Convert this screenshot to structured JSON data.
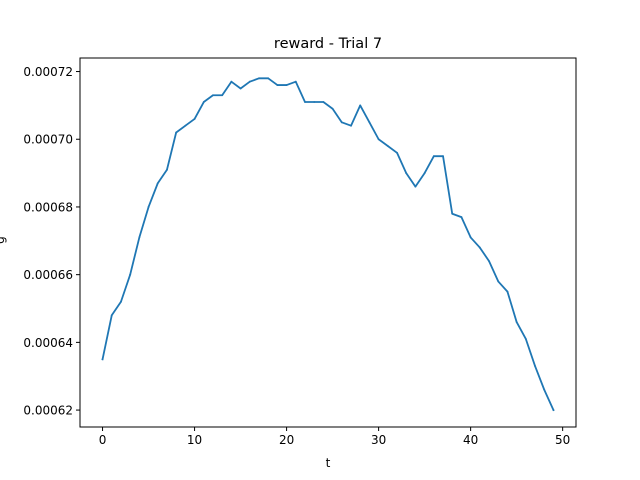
{
  "chart_data": {
    "type": "line",
    "title": "reward - Trial 7",
    "xlabel": "t",
    "ylabel": "g",
    "xlim": [
      -2.45,
      51.45
    ],
    "ylim": [
      0.000615,
      0.000724
    ],
    "grid": false,
    "xticks": [
      0,
      10,
      20,
      30,
      40,
      50
    ],
    "xtick_labels": [
      "0",
      "10",
      "20",
      "30",
      "40",
      "50"
    ],
    "yticks": [
      0.00062,
      0.00064,
      0.00066,
      0.00068,
      0.0007,
      0.00072
    ],
    "ytick_labels": [
      "0.00062",
      "0.00064",
      "0.00066",
      "0.00068",
      "0.00070",
      "0.00072"
    ],
    "line_color": "#1f77b4",
    "series": [
      {
        "x": [
          0,
          1,
          2,
          3,
          4,
          5,
          6,
          7,
          8,
          9,
          10,
          11,
          12,
          13,
          14,
          15,
          16,
          17,
          18,
          19,
          20,
          21,
          22,
          23,
          24,
          25,
          26,
          27,
          28,
          29,
          30,
          31,
          32,
          33,
          34,
          35,
          36,
          37,
          38,
          39,
          40,
          41,
          42,
          43,
          44,
          45,
          46,
          47,
          48,
          49
        ],
        "values": [
          0.000635,
          0.000648,
          0.000652,
          0.00066,
          0.000671,
          0.00068,
          0.000687,
          0.000691,
          0.000702,
          0.000704,
          0.000706,
          0.000711,
          0.000713,
          0.000713,
          0.000717,
          0.000715,
          0.000717,
          0.000718,
          0.000718,
          0.000716,
          0.000716,
          0.000717,
          0.000711,
          0.000711,
          0.000711,
          0.000709,
          0.000705,
          0.000704,
          0.00071,
          0.000705,
          0.0007,
          0.000698,
          0.000696,
          0.00069,
          0.000686,
          0.00069,
          0.000695,
          0.000695,
          0.000678,
          0.000677,
          0.000671,
          0.000668,
          0.000664,
          0.000658,
          0.000655,
          0.000646,
          0.000641,
          0.000633,
          0.000626,
          0.00062
        ]
      }
    ]
  }
}
